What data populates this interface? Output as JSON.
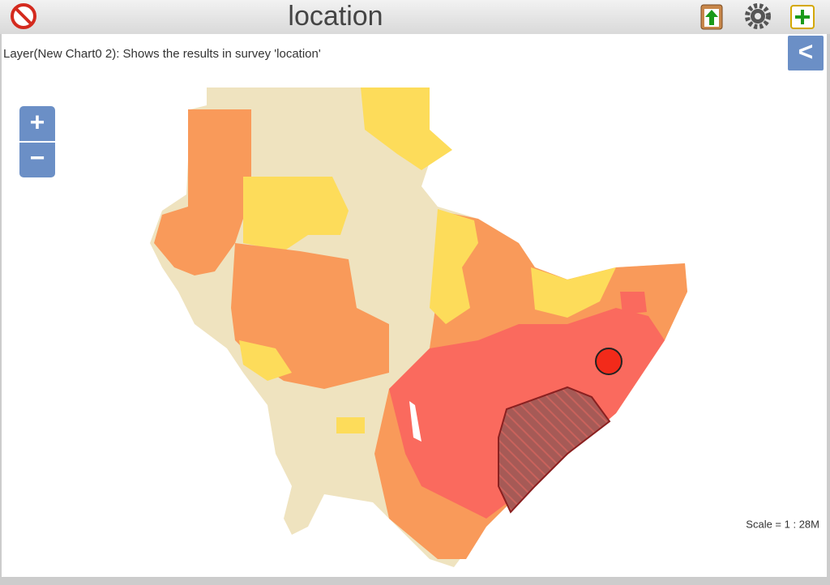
{
  "header": {
    "title": "location"
  },
  "layer_description": "Layer(New Chart0 2): Shows the results in survey 'location'",
  "zoom": {
    "in": "+",
    "out": "−"
  },
  "panel_toggle": "<",
  "scale": "Scale = 1 : 28M"
}
